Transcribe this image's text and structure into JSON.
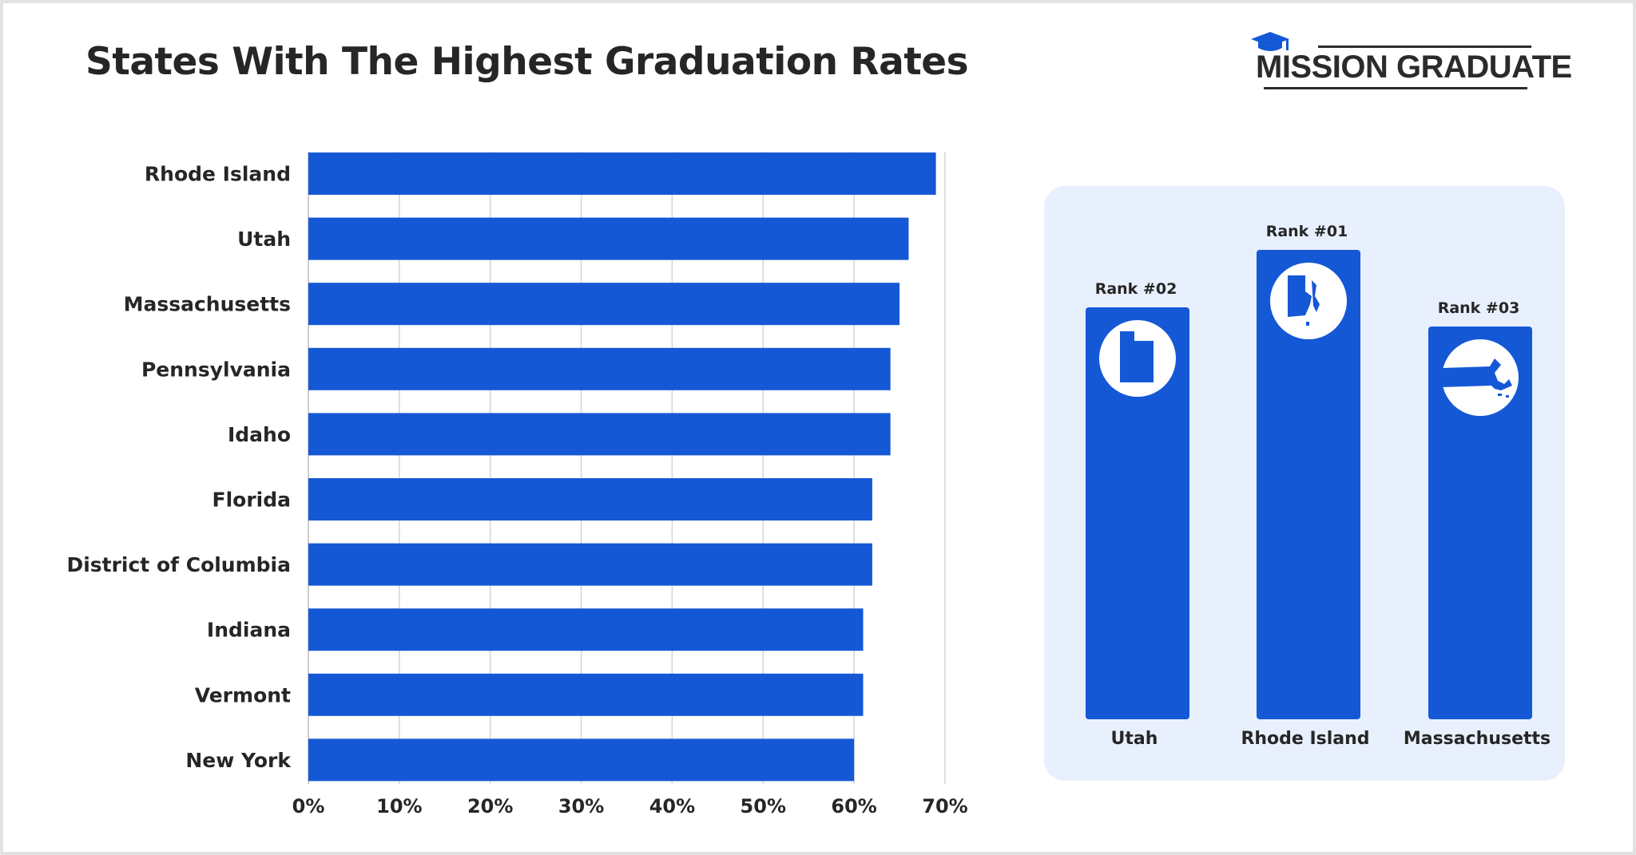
{
  "title": "States With The Highest Graduation Rates",
  "brand": {
    "name": "MISSION GRADUATE",
    "icon": "graduation-cap-icon",
    "color": "#2b2b2b",
    "cap_color": "#1558d6"
  },
  "colors": {
    "bar": "#1558d6",
    "panel_bg": "#e8f0fd",
    "grid": "#d4d4d4",
    "text": "#262626"
  },
  "chart_data": [
    {
      "type": "bar",
      "orientation": "horizontal",
      "title": "",
      "xlabel": "",
      "ylabel": "",
      "categories": [
        "Rhode Island",
        "Utah",
        "Massachusetts",
        "Pennsylvania",
        "Idaho",
        "Florida",
        "District of Columbia",
        "Indiana",
        "Vermont",
        "New York"
      ],
      "values": [
        69,
        66,
        65,
        64,
        64,
        62,
        62,
        61,
        61,
        60
      ],
      "unit": "%",
      "xlim": [
        0,
        70
      ],
      "xticks": [
        "0%",
        "10%",
        "20%",
        "30%",
        "40%",
        "50%",
        "60%",
        "70%"
      ],
      "grid": true,
      "legend": "none"
    },
    {
      "type": "bar",
      "orientation": "vertical",
      "title": "",
      "categories": [
        "Utah",
        "Rhode Island",
        "Massachusetts"
      ],
      "ranks": [
        "Rank #02",
        "Rank #01",
        "Rank #03"
      ],
      "values": [
        66,
        69,
        65
      ],
      "icons": [
        "utah-map-icon",
        "rhode-island-map-icon",
        "massachusetts-map-icon"
      ],
      "legend": "none"
    }
  ]
}
